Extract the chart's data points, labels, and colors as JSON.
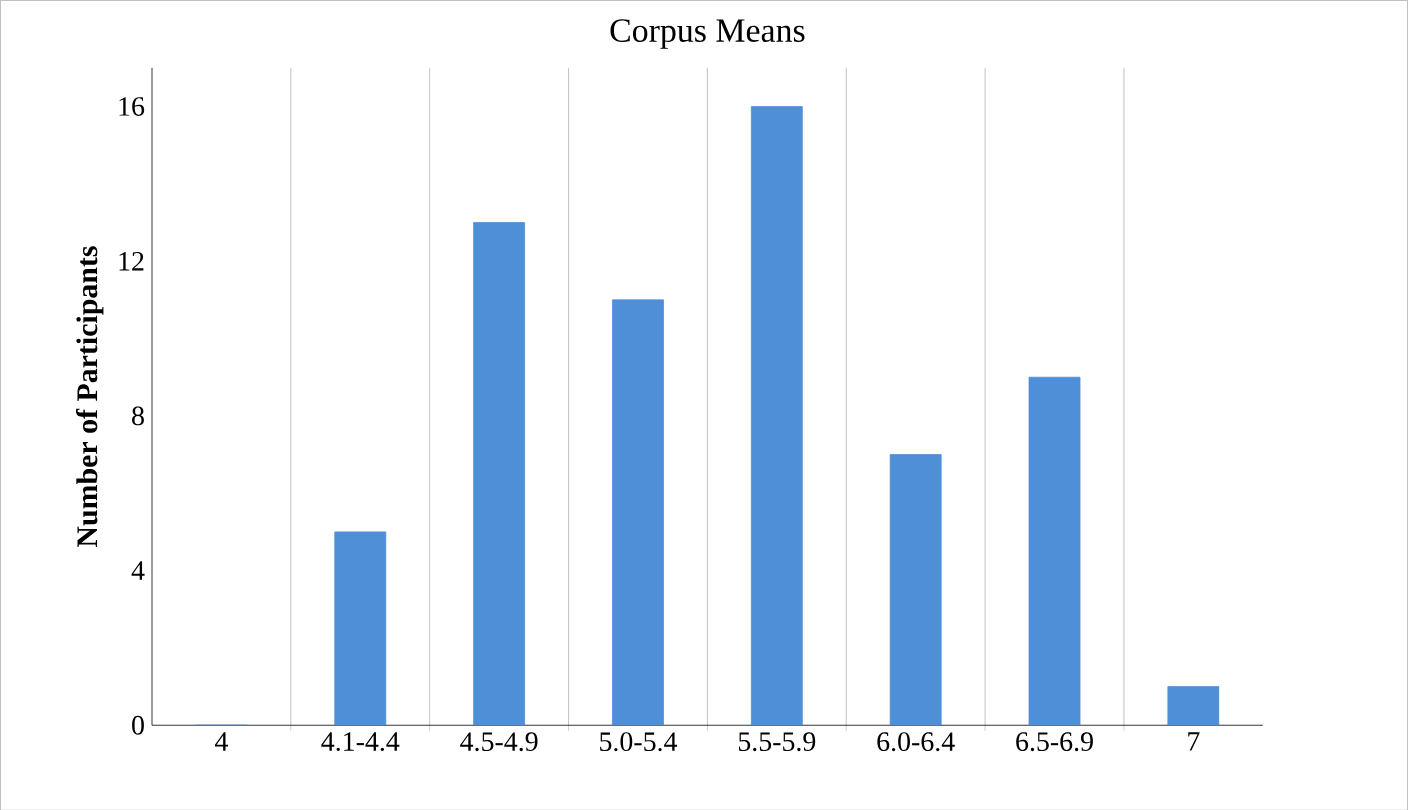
{
  "chart_data": {
    "type": "bar",
    "title": "Corpus Means",
    "ylabel": "Number of Participants",
    "categories": [
      "4",
      "4.1-4.4",
      "4.5-4.9",
      "5.0-5.4",
      "5.5-5.9",
      "6.0-6.4",
      "6.5-6.9",
      "7"
    ],
    "values": [
      0,
      5,
      13,
      11,
      16,
      7,
      9,
      1
    ],
    "color": "#4f8fd8",
    "ylim": [
      0,
      17
    ],
    "yticks": [
      0,
      4,
      8,
      12,
      16
    ],
    "grid": "x"
  }
}
